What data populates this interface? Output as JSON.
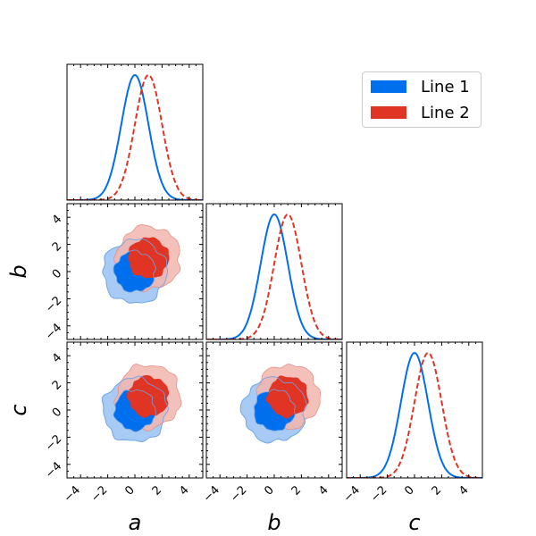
{
  "chart_data": {
    "type": "corner",
    "parameters": [
      "a",
      "b",
      "c"
    ],
    "axis_labels": {
      "a": "a",
      "b": "b",
      "c": "c"
    },
    "range": [
      -5,
      5
    ],
    "ticks": [
      -4,
      -2,
      0,
      2,
      4
    ],
    "series": [
      {
        "name": "Line 1",
        "color": "#006FED",
        "line_style": "solid",
        "mean": {
          "a": 0.0,
          "b": 0.0,
          "c": 0.0
        },
        "sigma": 1.0
      },
      {
        "name": "Line 2",
        "color": "#E03424",
        "line_style": "dashed",
        "mean": {
          "a": 1.0,
          "b": 1.0,
          "c": 1.0
        },
        "sigma": 1.0
      }
    ],
    "contour_levels": [
      "68%",
      "95%"
    ],
    "legend_position": "top-right"
  },
  "legend": {
    "items": [
      {
        "label": "Line 1",
        "color": "#006FED"
      },
      {
        "label": "Line 2",
        "color": "#E03424"
      }
    ]
  }
}
